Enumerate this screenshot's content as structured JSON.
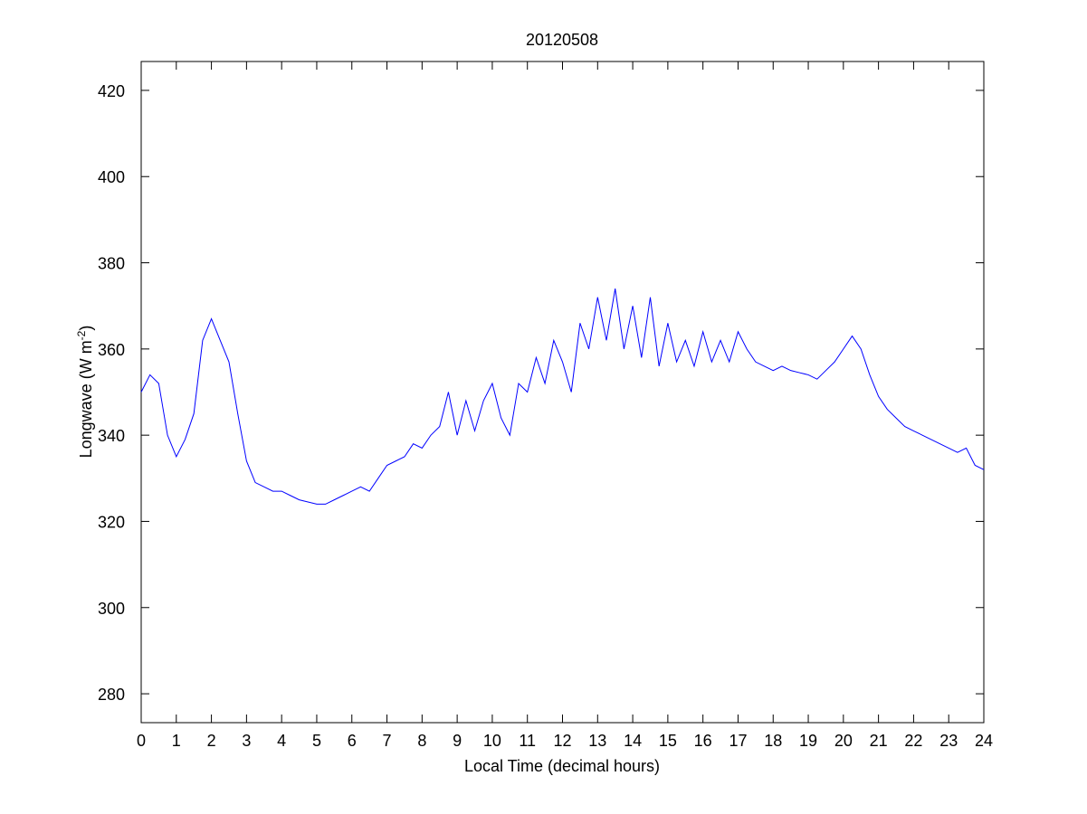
{
  "chart_data": {
    "type": "line",
    "title": "20120508",
    "x_label": "Local Time (decimal hours)",
    "y_label": [
      "Longwave (W m",
      "-2",
      ")"
    ],
    "x": [
      0,
      0.25,
      0.5,
      0.75,
      1,
      1.25,
      1.5,
      1.75,
      2,
      2.25,
      2.5,
      2.75,
      3,
      3.25,
      3.5,
      3.75,
      4,
      4.25,
      4.5,
      4.75,
      5,
      5.25,
      5.5,
      5.75,
      6,
      6.25,
      6.5,
      6.75,
      7,
      7.25,
      7.5,
      7.75,
      8,
      8.25,
      8.5,
      8.75,
      9,
      9.25,
      9.5,
      9.75,
      10,
      10.25,
      10.5,
      10.75,
      11,
      11.25,
      11.5,
      11.75,
      12,
      12.25,
      12.5,
      12.75,
      13,
      13.25,
      13.5,
      13.75,
      14,
      14.25,
      14.5,
      14.75,
      15,
      15.25,
      15.5,
      15.75,
      16,
      16.25,
      16.5,
      16.75,
      17,
      17.25,
      17.5,
      17.75,
      18,
      18.25,
      18.5,
      18.75,
      19,
      19.25,
      19.5,
      19.75,
      20,
      20.25,
      20.5,
      20.75,
      21,
      21.25,
      21.5,
      21.75,
      22,
      22.25,
      22.5,
      22.75,
      23,
      23.25,
      23.5,
      23.75,
      24
    ],
    "series": [
      {
        "name": "Longwave",
        "color": "#0000ff",
        "values": [
          350,
          354,
          352,
          340,
          335,
          339,
          345,
          362,
          367,
          362,
          357,
          345,
          334,
          329,
          328,
          327,
          327,
          326,
          325,
          324.5,
          324,
          324,
          325,
          326,
          327,
          328,
          327,
          330,
          333,
          334,
          335,
          338,
          337,
          340,
          342,
          350,
          340,
          348,
          341,
          348,
          352,
          344,
          340,
          352,
          350,
          358,
          352,
          362,
          357,
          350,
          366,
          360,
          372,
          362,
          374,
          360,
          370,
          358,
          372,
          356,
          366,
          357,
          362,
          356,
          364,
          357,
          362,
          357,
          364,
          360,
          357,
          356,
          355,
          356,
          355,
          354.5,
          354,
          353,
          355,
          357,
          360,
          363,
          360,
          354,
          349,
          346,
          344,
          342,
          341,
          340,
          339,
          338,
          337,
          336,
          337,
          333,
          332
        ]
      }
    ],
    "xlim": [
      0,
      24
    ],
    "ylim": [
      273.3,
      426.7
    ],
    "xticks": [
      0,
      1,
      2,
      3,
      4,
      5,
      6,
      7,
      8,
      9,
      10,
      11,
      12,
      13,
      14,
      15,
      16,
      17,
      18,
      19,
      20,
      21,
      22,
      23,
      24
    ],
    "yticks": [
      280,
      300,
      320,
      340,
      360,
      380,
      400,
      420
    ]
  }
}
